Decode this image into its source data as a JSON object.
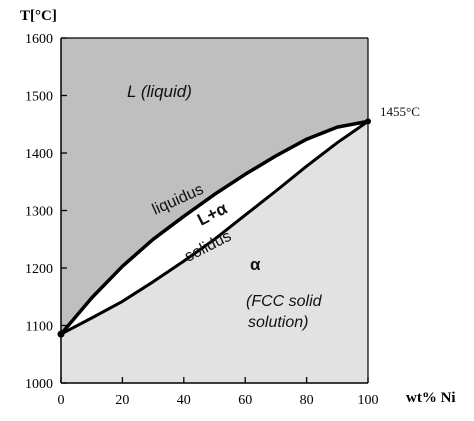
{
  "chart_data": {
    "type": "area",
    "title": "",
    "ylabel": "T[°C]",
    "xlabel": "wt% Ni",
    "xlim": [
      0,
      100
    ],
    "ylim": [
      1000,
      1600
    ],
    "x_ticks": [
      0,
      20,
      40,
      60,
      80,
      100
    ],
    "y_ticks": [
      1000,
      1100,
      1200,
      1300,
      1400,
      1500,
      1600
    ],
    "grid": false,
    "series": [
      {
        "name": "liquidus",
        "x": [
          0,
          10,
          20,
          30,
          40,
          50,
          60,
          70,
          80,
          90,
          100
        ],
        "y": [
          1085,
          1148,
          1203,
          1250,
          1290,
          1328,
          1363,
          1395,
          1424,
          1445,
          1455
        ]
      },
      {
        "name": "solidus",
        "x": [
          0,
          10,
          20,
          30,
          40,
          50,
          60,
          70,
          80,
          90,
          100
        ],
        "y": [
          1085,
          1113,
          1142,
          1176,
          1212,
          1250,
          1292,
          1334,
          1377,
          1418,
          1455
        ]
      }
    ],
    "annotations": {
      "liquid": "L (liquid)",
      "liquidus_label": "liquidus",
      "two_phase": "L+α",
      "solidus_label": "solidus",
      "alpha": "α",
      "fcc_line1": "(FCC solid",
      "fcc_line2": "solution)",
      "melting_point": "1455°C"
    },
    "colors": {
      "liquid_region": "#bfbfbf",
      "solid_region": "#e2e2e2",
      "two_phase_region": "#ffffff",
      "lines": "#000000"
    }
  }
}
